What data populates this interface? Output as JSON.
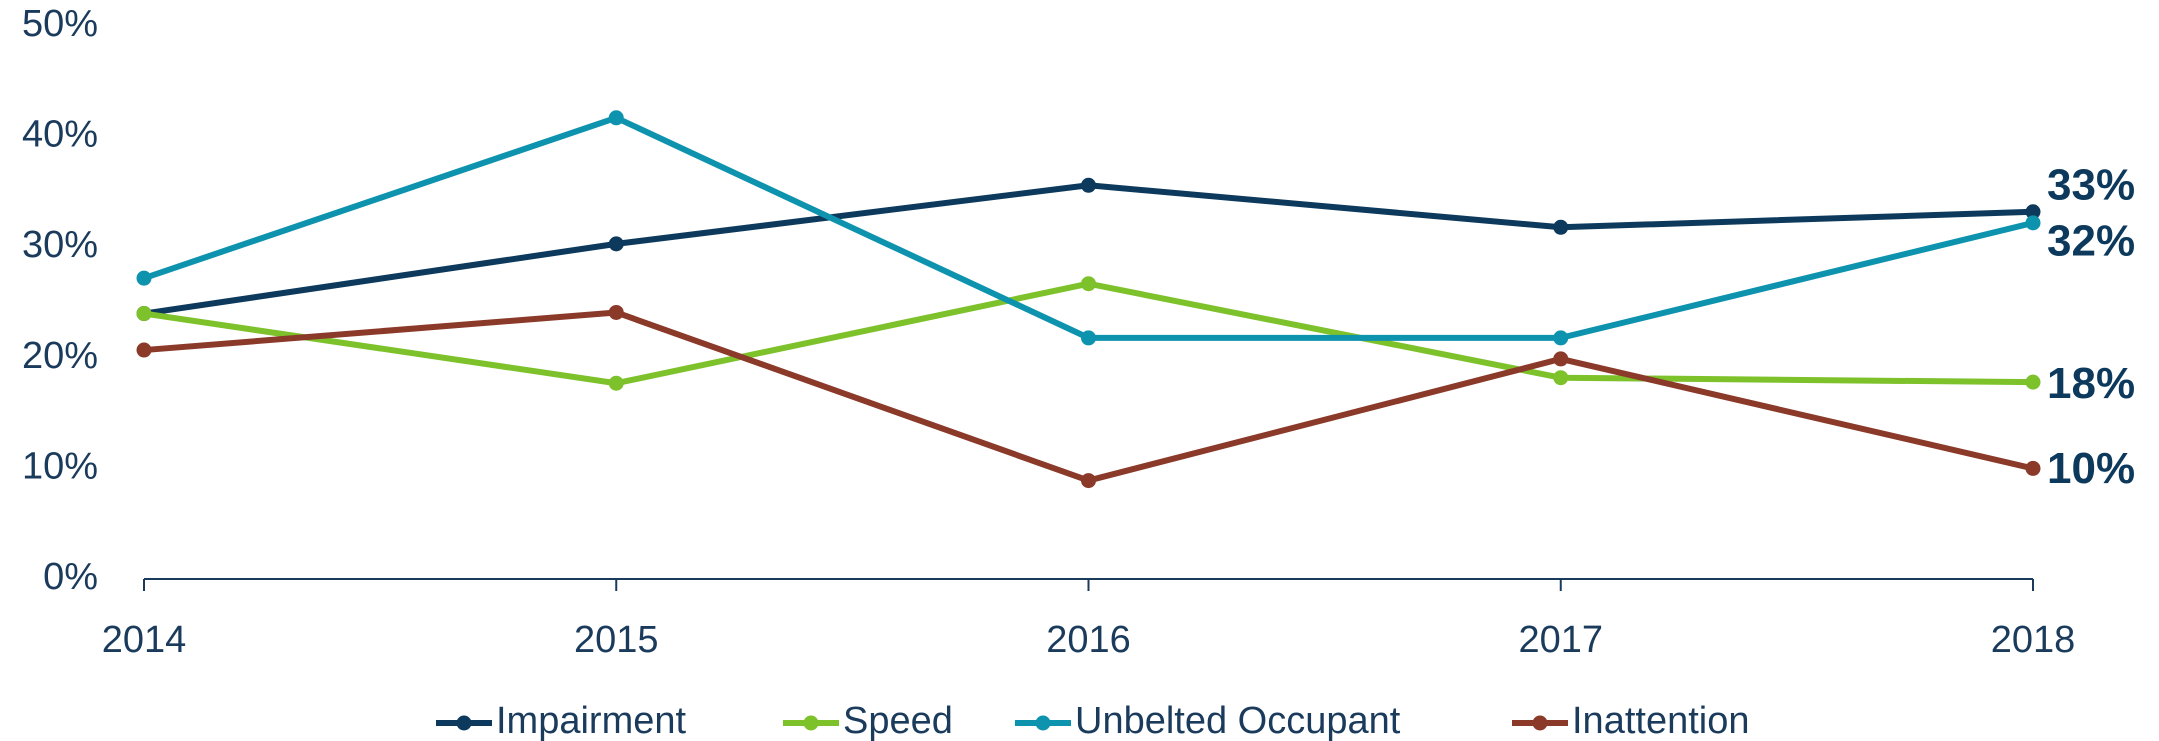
{
  "chart_data": {
    "type": "line",
    "categories": [
      "2014",
      "2015",
      "2016",
      "2017",
      "2018"
    ],
    "series": [
      {
        "name": "Impairment",
        "color": "#0d3a5c",
        "values": [
          24,
          30.3,
          35.6,
          31.8,
          33.2
        ],
        "value_labels": [
          null,
          null,
          null,
          null,
          "33%"
        ]
      },
      {
        "name": "Speed",
        "color": "#7dc12b",
        "values": [
          24,
          17.7,
          26.7,
          18.2,
          17.8
        ],
        "value_labels": [
          null,
          null,
          null,
          null,
          "18%"
        ]
      },
      {
        "name": "Unbelted Occupant",
        "color": "#0e93ae",
        "values": [
          27.2,
          41.7,
          21.8,
          21.8,
          32.2
        ],
        "value_labels": [
          null,
          null,
          null,
          null,
          "32%"
        ]
      },
      {
        "name": "Inattention",
        "color": "#8b3a2a",
        "values": [
          20.7,
          24.1,
          8.9,
          19.9,
          10
        ],
        "value_labels": [
          null,
          null,
          null,
          null,
          "10%"
        ]
      }
    ],
    "ylim": [
      0,
      50
    ],
    "yticks": [
      {
        "value": 0,
        "label": "0%"
      },
      {
        "value": 10,
        "label": "10%"
      },
      {
        "value": 20,
        "label": "20%"
      },
      {
        "value": 30,
        "label": "30%"
      },
      {
        "value": 40,
        "label": "40%"
      },
      {
        "value": 50,
        "label": "50%"
      }
    ],
    "grid": false,
    "legend": "bottom"
  }
}
